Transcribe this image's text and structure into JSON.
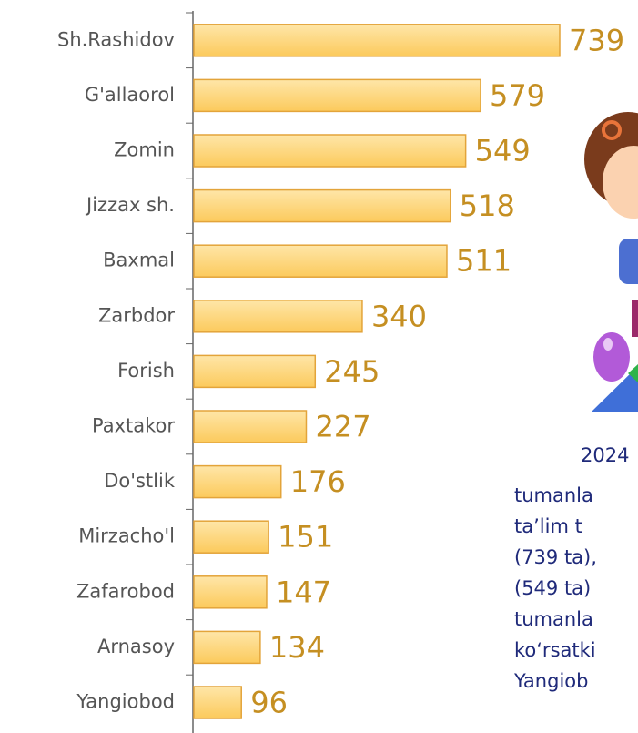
{
  "chart_data": {
    "type": "bar",
    "orientation": "horizontal",
    "categories": [
      "Sh.Rashidov",
      "G'allaorol",
      "Zomin",
      "Jizzax sh.",
      "Baxmal",
      "Zarbdor",
      "Forish",
      "Paxtakor",
      "Do'stlik",
      "Mirzacho'l",
      "Zafarobod",
      "Arnasoy",
      "Yangiobod"
    ],
    "values": [
      739,
      579,
      549,
      518,
      511,
      340,
      245,
      227,
      176,
      151,
      147,
      134,
      96
    ],
    "color": "#fdd57a",
    "edge_color": "#e3a43a",
    "annotations": [
      "2024",
      "tumanla",
      "ta’lim t",
      "(739 ta),",
      "(549 ta)",
      "tumanla",
      "ko‘rsatki",
      "Yangiob"
    ]
  }
}
